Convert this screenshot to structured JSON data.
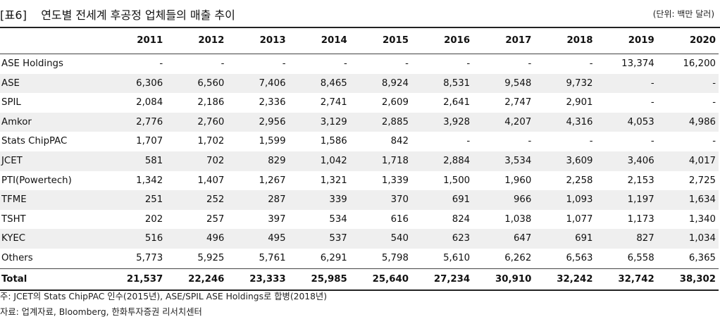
{
  "header": {
    "tag": "[표6]",
    "title": "연도별 전세계 후공정 업체들의 매출 추이",
    "unit": "(단위: 백만 달러)"
  },
  "table": {
    "years": [
      "2011",
      "2012",
      "2013",
      "2014",
      "2015",
      "2016",
      "2017",
      "2018",
      "2019",
      "2020"
    ],
    "rows": [
      {
        "name": "ASE Holdings",
        "values": [
          "-",
          "-",
          "-",
          "-",
          "-",
          "-",
          "-",
          "-",
          "13,374",
          "16,200"
        ]
      },
      {
        "name": "ASE",
        "values": [
          "6,306",
          "6,560",
          "7,406",
          "8,465",
          "8,924",
          "8,531",
          "9,548",
          "9,732",
          "-",
          "-"
        ]
      },
      {
        "name": "SPIL",
        "values": [
          "2,084",
          "2,186",
          "2,336",
          "2,741",
          "2,609",
          "2,641",
          "2,747",
          "2,901",
          "-",
          "-"
        ]
      },
      {
        "name": "Amkor",
        "values": [
          "2,776",
          "2,760",
          "2,956",
          "3,129",
          "2,885",
          "3,928",
          "4,207",
          "4,316",
          "4,053",
          "4,986"
        ]
      },
      {
        "name": "Stats ChipPAC",
        "values": [
          "1,707",
          "1,702",
          "1,599",
          "1,586",
          "842",
          "-",
          "-",
          "-",
          "-",
          "-"
        ]
      },
      {
        "name": "JCET",
        "values": [
          "581",
          "702",
          "829",
          "1,042",
          "1,718",
          "2,884",
          "3,534",
          "3,609",
          "3,406",
          "4,017"
        ]
      },
      {
        "name": "PTI(Powertech)",
        "values": [
          "1,342",
          "1,407",
          "1,267",
          "1,321",
          "1,339",
          "1,500",
          "1,960",
          "2,258",
          "2,153",
          "2,725"
        ]
      },
      {
        "name": "TFME",
        "values": [
          "251",
          "252",
          "287",
          "339",
          "370",
          "691",
          "966",
          "1,093",
          "1,197",
          "1,634"
        ]
      },
      {
        "name": "TSHT",
        "values": [
          "202",
          "257",
          "397",
          "534",
          "616",
          "824",
          "1,038",
          "1,077",
          "1,173",
          "1,340"
        ]
      },
      {
        "name": "KYEC",
        "values": [
          "516",
          "496",
          "495",
          "537",
          "540",
          "623",
          "647",
          "691",
          "827",
          "1,034"
        ]
      },
      {
        "name": "Others",
        "values": [
          "5,773",
          "5,925",
          "5,761",
          "6,291",
          "5,798",
          "5,610",
          "6,262",
          "6,563",
          "6,558",
          "6,365"
        ]
      }
    ],
    "total": {
      "name": "Total",
      "values": [
        "21,537",
        "22,246",
        "23,333",
        "25,985",
        "25,640",
        "27,234",
        "30,910",
        "32,242",
        "32,742",
        "38,302"
      ]
    }
  },
  "notes": {
    "note1": "주: JCET의 Stats ChipPAC 인수(2015년), ASE/SPIL ASE Holdings로 합병(2018년)",
    "note2": "자료: 업계자료, Bloomberg, 한화투자증권 리서치센터"
  }
}
